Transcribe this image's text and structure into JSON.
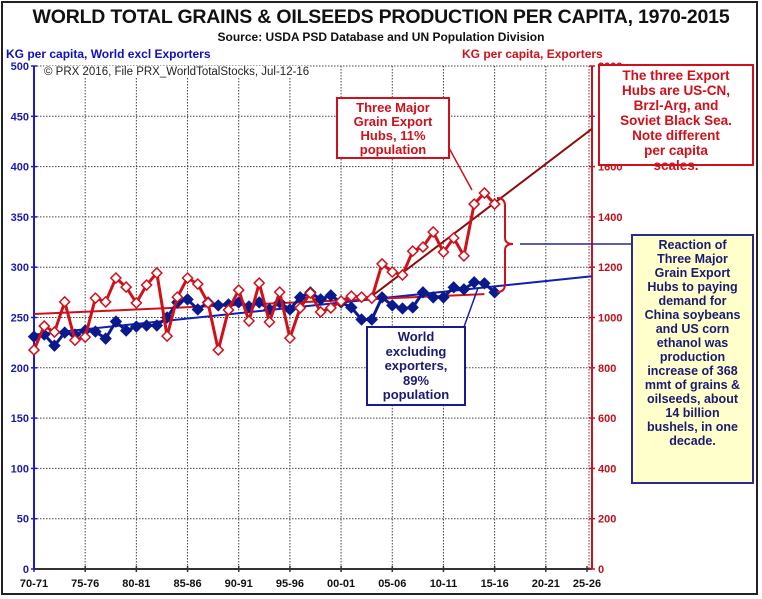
{
  "chart_data": {
    "type": "line",
    "title": "WORLD TOTAL GRAINS & OILSEEDS PRODUCTION PER CAPITA, 1970-2015",
    "subtitle": "Source: USDA PSD Database and UN Population Division",
    "ylabel_left": "KG per capita, World excl Exporters",
    "ylabel_right": "KG per capita, Exporters",
    "copyright": "© PRX 2016, File PRX_WorldTotalStocks, Jul-12-16",
    "xlim": [
      1970,
      2025
    ],
    "ylim_left": [
      0,
      500
    ],
    "ylim_right": [
      0,
      2000
    ],
    "x_ticks": [
      "70-71",
      "75-76",
      "80-81",
      "85-86",
      "90-91",
      "95-96",
      "00-01",
      "05-06",
      "10-11",
      "15-16",
      "20-21",
      "25-26"
    ],
    "x_tick_years": [
      1970,
      1975,
      1980,
      1985,
      1990,
      1995,
      2000,
      2005,
      2010,
      2015,
      2020,
      2025
    ],
    "y_ticks_left": [
      0,
      50,
      100,
      150,
      200,
      250,
      300,
      350,
      400,
      450,
      500
    ],
    "y_ticks_right": [
      0,
      200,
      400,
      600,
      800,
      1000,
      1200,
      1400,
      1600,
      1800,
      2000
    ],
    "grid": true,
    "years": [
      1970,
      1971,
      1972,
      1973,
      1974,
      1975,
      1976,
      1977,
      1978,
      1979,
      1980,
      1981,
      1982,
      1983,
      1984,
      1985,
      1986,
      1987,
      1988,
      1989,
      1990,
      1991,
      1992,
      1993,
      1994,
      1995,
      1996,
      1997,
      1998,
      1999,
      2000,
      2001,
      2002,
      2003,
      2004,
      2005,
      2006,
      2007,
      2008,
      2009,
      2010,
      2011,
      2012,
      2013,
      2014,
      2015
    ],
    "series": [
      {
        "name": "World excluding exporters",
        "axis": "left",
        "color": "#0a1a8c",
        "marker": "filled-diamond",
        "values": [
          231,
          233,
          222,
          235,
          233,
          237,
          236,
          229,
          246,
          237,
          241,
          242,
          242,
          250,
          265,
          268,
          258,
          265,
          262,
          263,
          265,
          261,
          265,
          258,
          265,
          258,
          270,
          275,
          268,
          272,
          265,
          260,
          248,
          248,
          270,
          262,
          259,
          260,
          275,
          270,
          270,
          280,
          278,
          285,
          284,
          275
        ]
      },
      {
        "name": "Three Major Grain Export Hubs",
        "axis": "right",
        "color": "#d0101a",
        "marker": "open-diamond",
        "values": [
          871,
          966,
          942,
          1062,
          910,
          922,
          1077,
          1062,
          1157,
          1121,
          1058,
          1129,
          1177,
          926,
          1081,
          1157,
          1133,
          1058,
          871,
          1030,
          1109,
          986,
          1137,
          982,
          1101,
          918,
          1038,
          1097,
          1022,
          1038,
          1065,
          1085,
          1081,
          1077,
          1213,
          1181,
          1169,
          1264,
          1280,
          1340,
          1260,
          1316,
          1245,
          1451,
          1495,
          1451
        ]
      }
    ],
    "trendlines": [
      {
        "name": "World excl exporters trend",
        "axis": "left",
        "color": "#1020b0",
        "x": [
          1970,
          2024.5
        ],
        "y": [
          233,
          291
        ]
      },
      {
        "name": "Exporters long-term trend",
        "axis": "right",
        "color": "#d0101a",
        "x": [
          1970,
          2014
        ],
        "y": [
          1014,
          1093
        ]
      },
      {
        "name": "Exporters recent trend",
        "axis": "right",
        "color": "#8b0a0a",
        "x": [
          2003,
          2024.5
        ],
        "y": [
          1085,
          1750
        ]
      }
    ],
    "annotations": {
      "hubs_note": [
        "The three Export",
        "Hubs are US-CN,",
        "Brzl-Arg, and",
        "Soviet Black Sea.",
        "Note different",
        "per capita",
        "scales."
      ],
      "hubs_label": [
        "Three Major",
        "Grain Export",
        "Hubs, 11%",
        "population"
      ],
      "world_label": [
        "World",
        "excluding",
        "exporters,",
        "89%",
        "population"
      ],
      "reaction_note": [
        "Reaction of",
        "Three Major",
        "Grain Export",
        "Hubs to paying",
        "demand for",
        "China soybeans",
        "and US corn",
        "ethanol was",
        "production",
        "increase of 368",
        "mmt of grains &",
        "oilseeds, about",
        "14 billion",
        "bushels, in one",
        "decade."
      ]
    }
  }
}
